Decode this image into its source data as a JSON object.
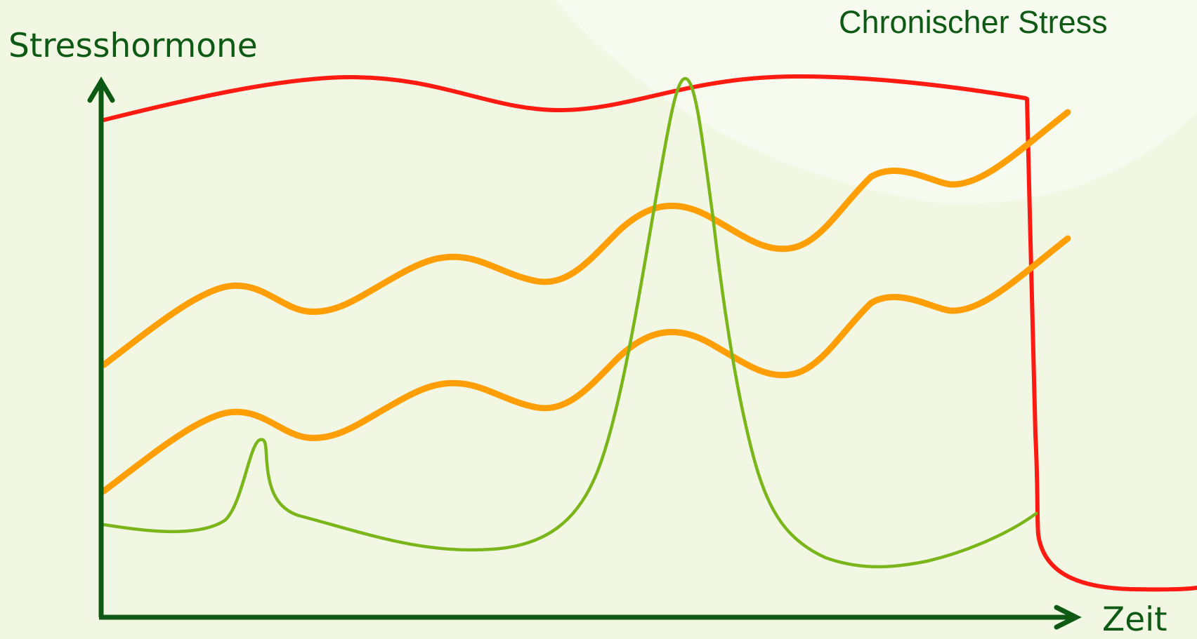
{
  "title": "Chronischer Stress",
  "y_axis_label": "Stresshormone",
  "x_axis_label": "Zeit",
  "colors": {
    "background": "#f1f7e3",
    "glow": "#f7fbef",
    "axis": "#0e5a14",
    "text": "#0e5a14",
    "chronic_curve": "#ff1a12",
    "orange_curves": "#ff9f05",
    "acute_curve": "#7ab51a"
  }
}
